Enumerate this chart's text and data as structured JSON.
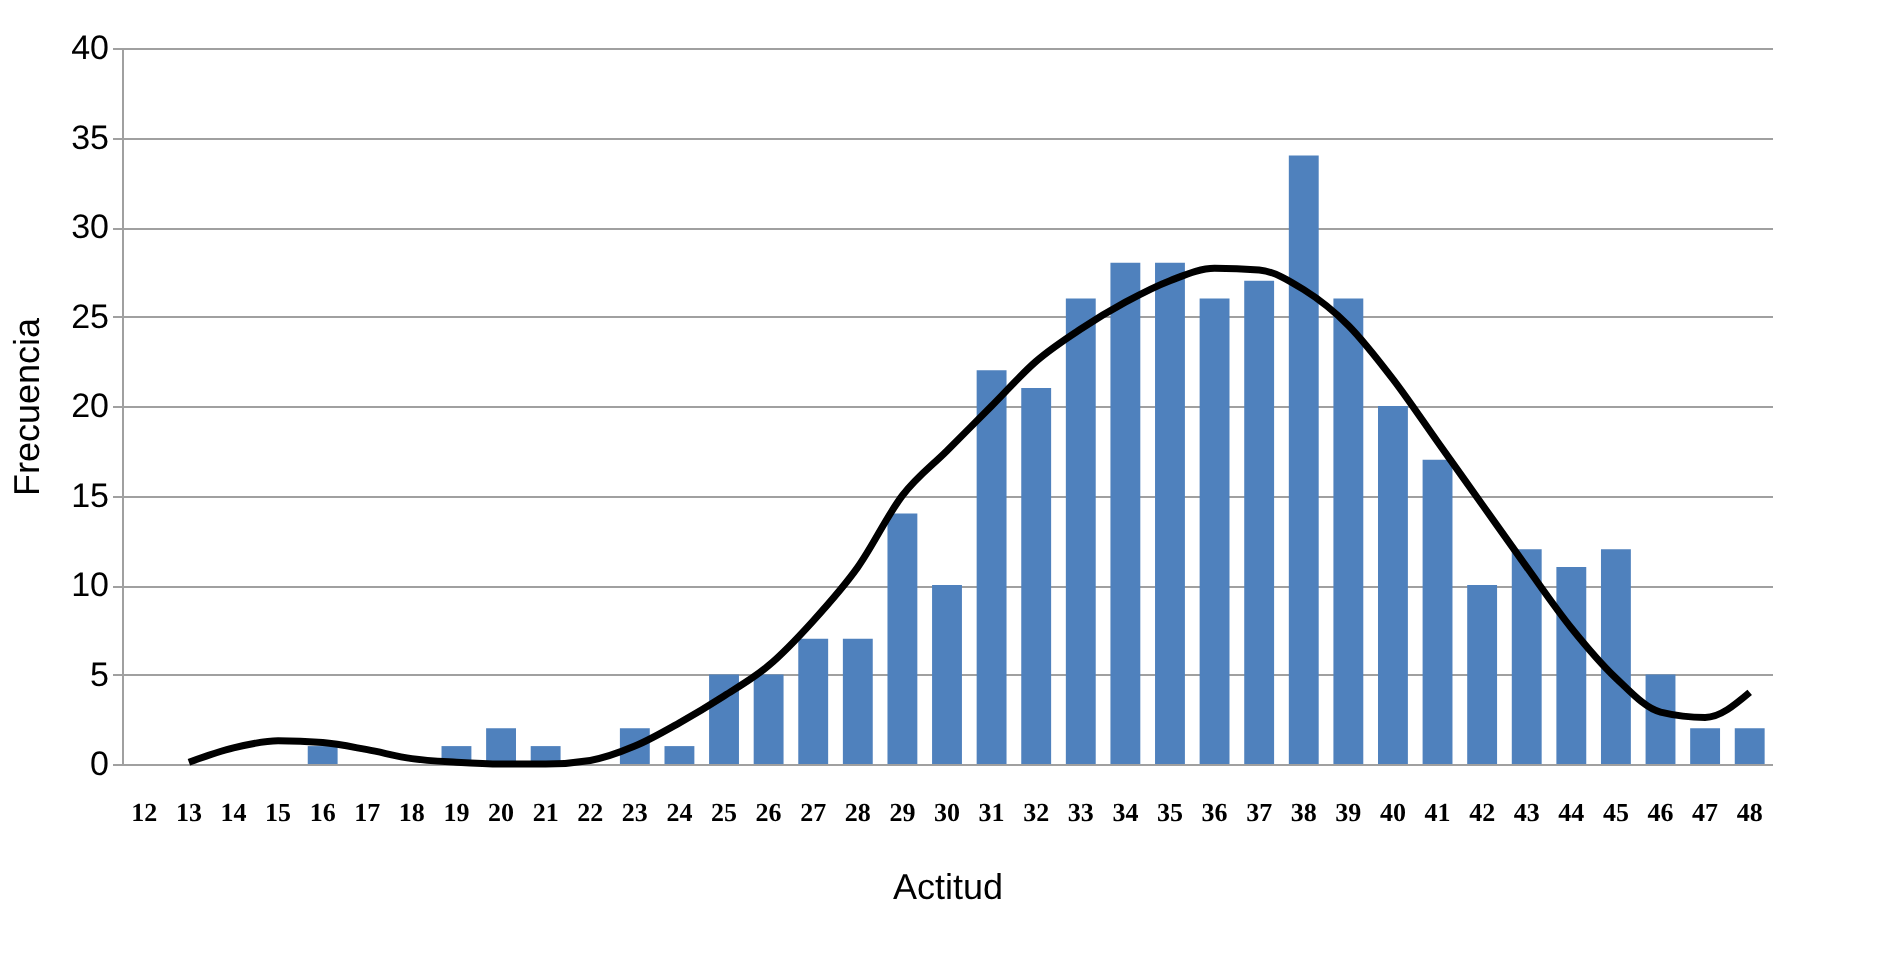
{
  "chart_data": {
    "type": "bar",
    "xlabel": "Actitud",
    "ylabel": "Frecuencia",
    "categories": [
      "12",
      "13",
      "14",
      "15",
      "16",
      "17",
      "18",
      "19",
      "20",
      "21",
      "22",
      "23",
      "24",
      "25",
      "26",
      "27",
      "28",
      "29",
      "30",
      "31",
      "32",
      "33",
      "34",
      "35",
      "36",
      "37",
      "38",
      "39",
      "40",
      "41",
      "42",
      "43",
      "44",
      "45",
      "46",
      "47",
      "48"
    ],
    "series": [
      {
        "color": "#4f81bd",
        "values": [
          0,
          0,
          0,
          0,
          1,
          0,
          0,
          1,
          2,
          1,
          0,
          2,
          1,
          5,
          5,
          7,
          7,
          14,
          10,
          22,
          21,
          26,
          28,
          28,
          26,
          27,
          34,
          26,
          20,
          17,
          10,
          12,
          11,
          12,
          5,
          2,
          2
        ]
      },
      {
        "type": "line",
        "color": "#000000",
        "values": [
          null,
          0.1,
          0.9,
          1.3,
          1.2,
          0.8,
          0.3,
          0.1,
          0,
          0,
          0.2,
          1,
          2.3,
          3.8,
          5.5,
          8,
          11,
          15,
          17.5,
          20,
          22.5,
          24.3,
          25.8,
          27,
          27.7,
          27.6,
          26.5,
          24.5,
          21.5,
          18,
          14.5,
          11,
          7.6,
          4.8,
          2.9,
          2.6,
          4
        ]
      }
    ],
    "ylim": [
      0,
      40
    ],
    "yticks": [
      0,
      5,
      10,
      15,
      20,
      25,
      30,
      35,
      40
    ],
    "grid": "y",
    "legend": false,
    "marker": "none",
    "line_style": "solid"
  }
}
